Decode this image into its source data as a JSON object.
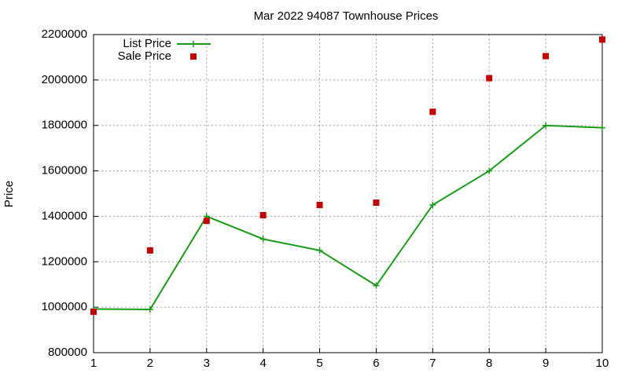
{
  "chart_data": {
    "type": "line",
    "title": "Mar 2022 94087 Townhouse Prices",
    "y_label": "Price",
    "x": [
      1,
      2,
      3,
      4,
      5,
      6,
      7,
      8,
      9,
      10
    ],
    "series": [
      {
        "name": "List Price",
        "color": "#1a9a1a",
        "style": "linespoints",
        "values": [
          992000,
          990000,
          1400000,
          1300000,
          1250000,
          1095000,
          1450000,
          1600000,
          1800000,
          1790000
        ]
      },
      {
        "name": "Sale Price",
        "color": "#c00000",
        "style": "points",
        "values": [
          980000,
          1250000,
          1380000,
          1405000,
          1450000,
          1460000,
          1860000,
          2008000,
          2105000,
          2178000
        ]
      }
    ],
    "xlim": [
      1,
      10
    ],
    "xticks": [
      1,
      2,
      3,
      4,
      5,
      6,
      7,
      8,
      9,
      10
    ],
    "ylim": [
      800000,
      2200000
    ],
    "yticks": [
      800000,
      1000000,
      1200000,
      1400000,
      1600000,
      1800000,
      2000000,
      2200000
    ],
    "grid": true,
    "legend": "top-left"
  }
}
